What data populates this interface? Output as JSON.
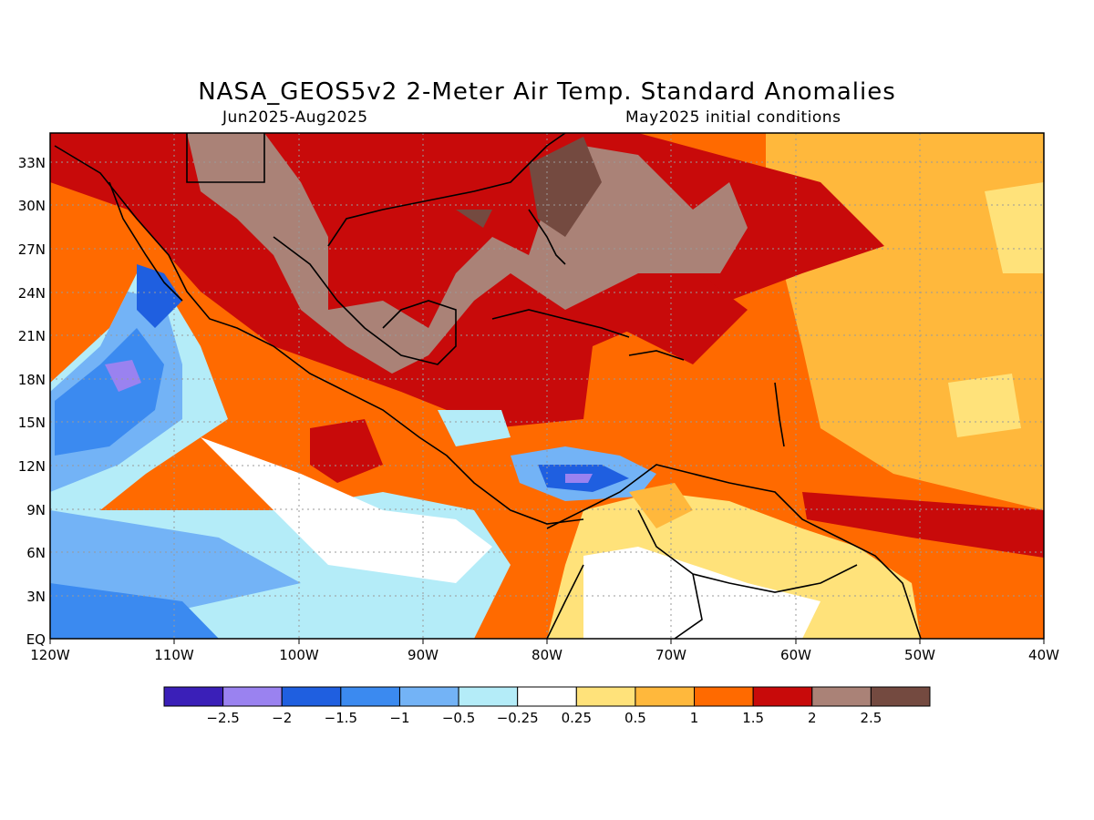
{
  "title": "NASA_GEOS5v2 2-Meter Air Temp. Standard Anomalies",
  "subtitle_left": "Jun2025-Aug2025",
  "subtitle_right": "May2025 initial conditions",
  "map": {
    "lon_range": [
      -120,
      -40
    ],
    "lat_range": [
      0,
      35
    ],
    "lat_ticks": [
      "33N",
      "30N",
      "27N",
      "24N",
      "21N",
      "18N",
      "15N",
      "12N",
      "9N",
      "6N",
      "3N",
      "EQ"
    ],
    "lon_ticks": [
      "120W",
      "110W",
      "100W",
      "90W",
      "80W",
      "70W",
      "60W",
      "50W",
      "40W"
    ],
    "grid": "dotted"
  },
  "colorbar": {
    "labels": [
      "-2.5",
      "-2",
      "-1.5",
      "-1",
      "-0.5",
      "-0.25",
      "0.25",
      "0.5",
      "1",
      "1.5",
      "2",
      "2.5"
    ],
    "colors": [
      "#3a1fb8",
      "#9a82f0",
      "#1f5fe0",
      "#3b8af0",
      "#73b3f6",
      "#b4ecf8",
      "#ffffff",
      "#ffe27a",
      "#ffb83c",
      "#ff6a00",
      "#c80a0a",
      "#aa8277",
      "#744a40"
    ]
  }
}
